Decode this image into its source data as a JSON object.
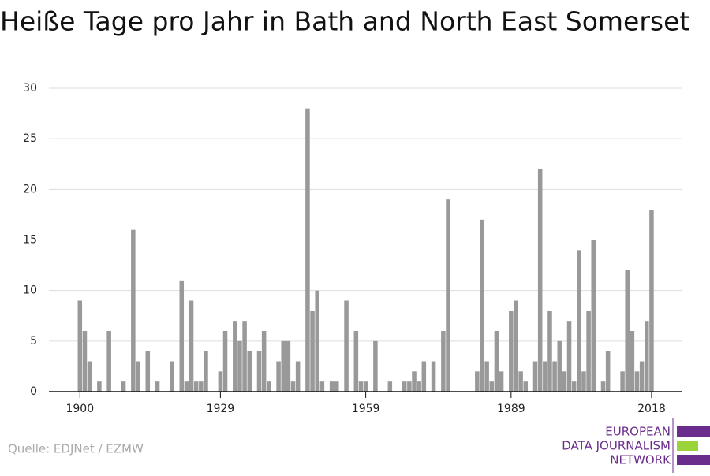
{
  "chart_data": {
    "type": "bar",
    "title": "Heiße Tage pro Jahr in Bath and North East Somerset",
    "x": [
      1900,
      1901,
      1902,
      1903,
      1904,
      1905,
      1906,
      1907,
      1908,
      1909,
      1910,
      1911,
      1912,
      1913,
      1914,
      1915,
      1916,
      1917,
      1918,
      1919,
      1920,
      1921,
      1922,
      1923,
      1924,
      1925,
      1926,
      1927,
      1928,
      1929,
      1930,
      1931,
      1932,
      1933,
      1934,
      1935,
      1936,
      1937,
      1938,
      1939,
      1940,
      1941,
      1942,
      1943,
      1944,
      1945,
      1946,
      1947,
      1948,
      1949,
      1950,
      1951,
      1952,
      1953,
      1954,
      1955,
      1956,
      1957,
      1958,
      1959,
      1960,
      1961,
      1962,
      1963,
      1964,
      1965,
      1966,
      1967,
      1968,
      1969,
      1970,
      1971,
      1972,
      1973,
      1974,
      1975,
      1976,
      1977,
      1978,
      1979,
      1980,
      1981,
      1982,
      1983,
      1984,
      1985,
      1986,
      1987,
      1988,
      1989,
      1990,
      1991,
      1992,
      1993,
      1994,
      1995,
      1996,
      1997,
      1998,
      1999,
      2000,
      2001,
      2002,
      2003,
      2004,
      2005,
      2006,
      2007,
      2008,
      2009,
      2010,
      2011,
      2012,
      2013,
      2014,
      2015,
      2016,
      2017,
      2018
    ],
    "values": [
      9,
      6,
      3,
      0,
      1,
      0,
      6,
      0,
      0,
      1,
      0,
      16,
      3,
      0,
      4,
      0,
      1,
      0,
      0,
      3,
      0,
      11,
      1,
      9,
      1,
      1,
      4,
      0,
      0,
      2,
      6,
      0,
      7,
      5,
      7,
      4,
      0,
      4,
      6,
      1,
      0,
      3,
      5,
      5,
      1,
      3,
      0,
      28,
      8,
      10,
      1,
      0,
      1,
      1,
      0,
      9,
      0,
      6,
      1,
      1,
      0,
      5,
      0,
      0,
      1,
      0,
      0,
      1,
      1,
      2,
      1,
      3,
      0,
      3,
      0,
      6,
      19,
      0,
      0,
      0,
      0,
      0,
      2,
      17,
      3,
      1,
      6,
      2,
      0,
      8,
      9,
      2,
      1,
      0,
      3,
      22,
      3,
      8,
      3,
      5,
      2,
      7,
      1,
      14,
      2,
      8,
      15,
      0,
      1,
      4,
      0,
      0,
      2,
      12,
      6,
      2,
      3,
      7,
      18
    ],
    "color": "#999999",
    "xlim": [
      1893.6,
      2024.2
    ],
    "xticks": [
      1900,
      1929,
      1959,
      1989,
      2018
    ],
    "ylim": [
      0,
      30
    ],
    "yticks": [
      0,
      5,
      10,
      15,
      20,
      25,
      30
    ],
    "grid": true
  },
  "footer": {
    "source": "Quelle: EDJNet / EZMW",
    "logo": [
      "EUROPEAN",
      "DATA JOURNALISM",
      "NETWORK"
    ]
  }
}
